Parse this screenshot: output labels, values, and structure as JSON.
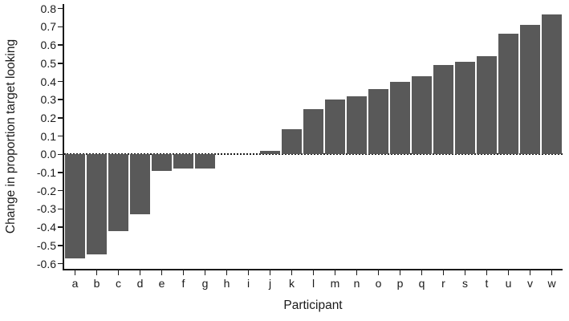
{
  "chart_data": {
    "type": "bar",
    "title": "",
    "xlabel": "Participant",
    "ylabel": "Change in proportion target looking",
    "categories": [
      "a",
      "b",
      "c",
      "d",
      "e",
      "f",
      "g",
      "h",
      "i",
      "j",
      "k",
      "l",
      "m",
      "n",
      "o",
      "p",
      "q",
      "r",
      "s",
      "t",
      "u",
      "v",
      "w"
    ],
    "values": [
      -0.57,
      -0.55,
      -0.42,
      -0.33,
      -0.09,
      -0.08,
      -0.08,
      0,
      0,
      0.02,
      0.14,
      0.25,
      0.3,
      0.32,
      0.36,
      0.4,
      0.43,
      0.49,
      0.51,
      0.54,
      0.66,
      0.71,
      0.77
    ],
    "ylim": [
      -0.6,
      0.8
    ],
    "ytick_step": 0.1,
    "ytick_values": [
      0.8,
      0.7,
      0.6,
      0.5,
      0.4,
      0.3,
      0.2,
      0.1,
      0.0,
      -0.1,
      -0.2,
      -0.3,
      -0.4,
      -0.5,
      -0.6
    ],
    "ytick_labels": [
      "0.8",
      "0.7",
      "0.6",
      "0.5",
      "0.4",
      "0.3",
      "0.2",
      "0.1",
      "0.0",
      "-0.1",
      "-0.2",
      "-0.3",
      "-0.4",
      "-0.5",
      "-0.6"
    ],
    "zero_line_style": "dotted",
    "grid": false,
    "legend": null,
    "bar_color": "#595959",
    "axis_color": "#1a1a1a",
    "text_color": "#1a1a1a",
    "background_color": "#ffffff"
  }
}
